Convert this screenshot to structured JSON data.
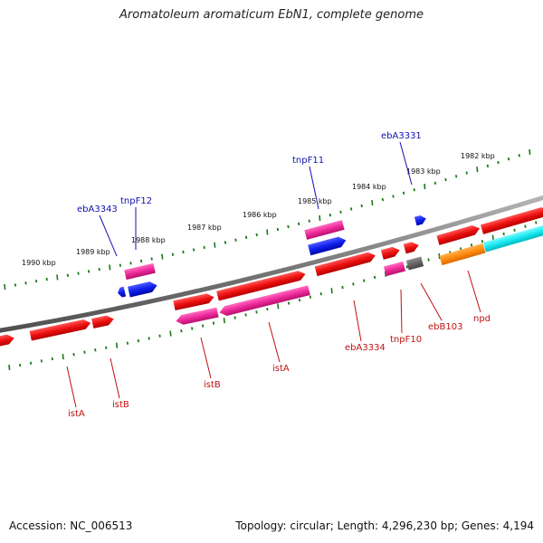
{
  "title": "Aromatoleum aromaticum EbN1, complete genome",
  "footer": {
    "accession": "Accession: NC_006513",
    "summary": "Topology: circular; Length: 4,296,230 bp; Genes: 4,194"
  },
  "colors": {
    "backbone": "#8a8a8a",
    "tick": "#1a7a1a",
    "label_top": "#1010b0",
    "label_bottom": "#c01010",
    "gene_red": "#ee1111",
    "gene_pink": "#ee2a9a",
    "gene_blue": "#1020ee",
    "gene_gray": "#666666",
    "gene_orange": "#ff8c10",
    "gene_cyan": "#18eaf0"
  },
  "ruler_labels": [
    "1990 kbp",
    "1989 kbp",
    "1988 kbp",
    "1987 kbp",
    "1986 kbp",
    "1985 kbp",
    "1984 kbp",
    "1983 kbp",
    "1982 kbp"
  ],
  "top_gene_labels": [
    "ebA3343",
    "tnpF12",
    "tnpF11",
    "ebA3331"
  ],
  "bottom_gene_labels": [
    "istA",
    "istB",
    "istB",
    "istA",
    "ebA3334",
    "tnpF10",
    "ebB103",
    "npd"
  ]
}
